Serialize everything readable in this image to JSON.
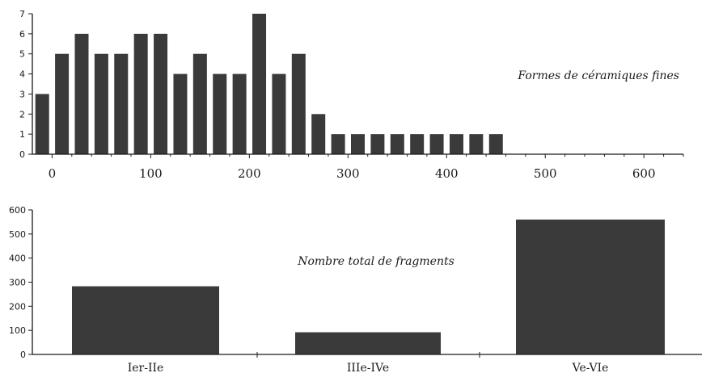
{
  "chart_data": [
    {
      "type": "bar",
      "annotation": "Formes de céramiques fines",
      "x": [
        -10,
        10,
        30,
        50,
        70,
        90,
        110,
        130,
        150,
        170,
        190,
        210,
        230,
        250,
        270,
        290,
        310,
        330,
        350,
        370,
        390,
        410,
        430,
        450
      ],
      "values": [
        3,
        5,
        6,
        5,
        5,
        6,
        6,
        4,
        5,
        4,
        4,
        7,
        4,
        5,
        2,
        1,
        1,
        1,
        1,
        1,
        1,
        1,
        1,
        1
      ],
      "xlim": [
        -20,
        640
      ],
      "ylim": [
        0,
        7
      ],
      "xticks": [
        0,
        100,
        200,
        300,
        400,
        500,
        600
      ],
      "yticks": [
        0,
        1,
        2,
        3,
        4,
        5,
        6,
        7
      ],
      "bar_color": "#3a3a3a"
    },
    {
      "type": "bar",
      "annotation": "Nombre total de fragments",
      "categories": [
        "Ier-IIe",
        "IIIe-IVe",
        "Ve-VIe"
      ],
      "values": [
        283,
        92,
        560
      ],
      "ylim": [
        0,
        600
      ],
      "yticks": [
        0,
        100,
        200,
        300,
        400,
        500,
        600
      ],
      "bar_color": "#3a3a3a"
    }
  ]
}
